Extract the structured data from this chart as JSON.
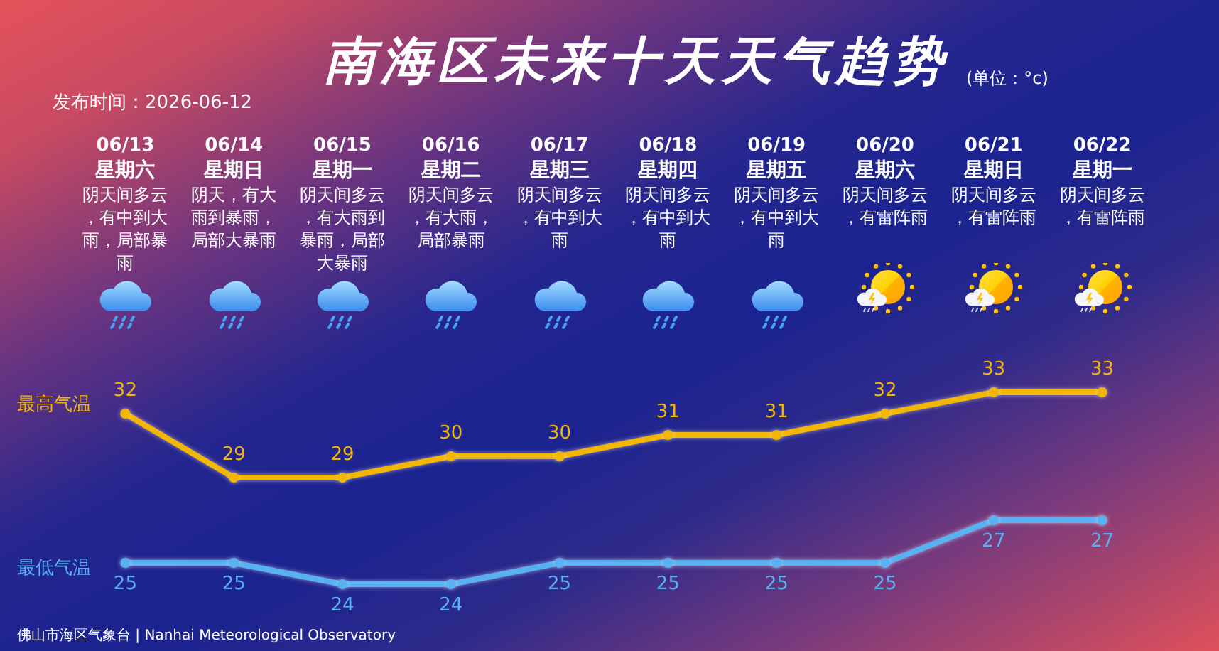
{
  "chart_data": {
    "type": "line",
    "title": "南海区未来十天天气趋势",
    "subtitle": "(单位：°c)",
    "categories": [
      "06/13",
      "06/14",
      "06/15",
      "06/16",
      "06/17",
      "06/18",
      "06/19",
      "06/20",
      "06/21",
      "06/22"
    ],
    "series": [
      {
        "name": "最高气温",
        "color": "#f2b705",
        "values": [
          32,
          29,
          29,
          30,
          30,
          31,
          31,
          32,
          33,
          33
        ]
      },
      {
        "name": "最低气温",
        "color": "#5ab1f2",
        "values": [
          25,
          25,
          24,
          24,
          25,
          25,
          25,
          25,
          27,
          27
        ]
      }
    ],
    "data_labels": true,
    "marker": "circle",
    "line_style": "solid",
    "legend": false,
    "tick_labels": "x",
    "annotations": [
      "发布时间：2026-06-12",
      "星期六",
      "阴天间多云，有中到大雨，局部暴雨",
      "星期日",
      "阴天，有大雨到暴雨，局部大暴雨",
      "星期一",
      "阴天间多云，有大雨到暴雨，局部大暴雨",
      "星期二",
      "阴天间多云，有大雨，局部暴雨",
      "星期三",
      "阴天间多云，有中到大雨",
      "星期四",
      "阴天间多云，有中到大雨",
      "星期五",
      "阴天间多云，有中到大雨",
      "星期六",
      "阴天间多云，有雷阵雨",
      "星期日",
      "阴天间多云，有雷阵雨",
      "星期一",
      "阴天间多云，有雷阵雨",
      "佛山市海区气象台 | Nanhai Meteorological Observatory"
    ]
  }
}
